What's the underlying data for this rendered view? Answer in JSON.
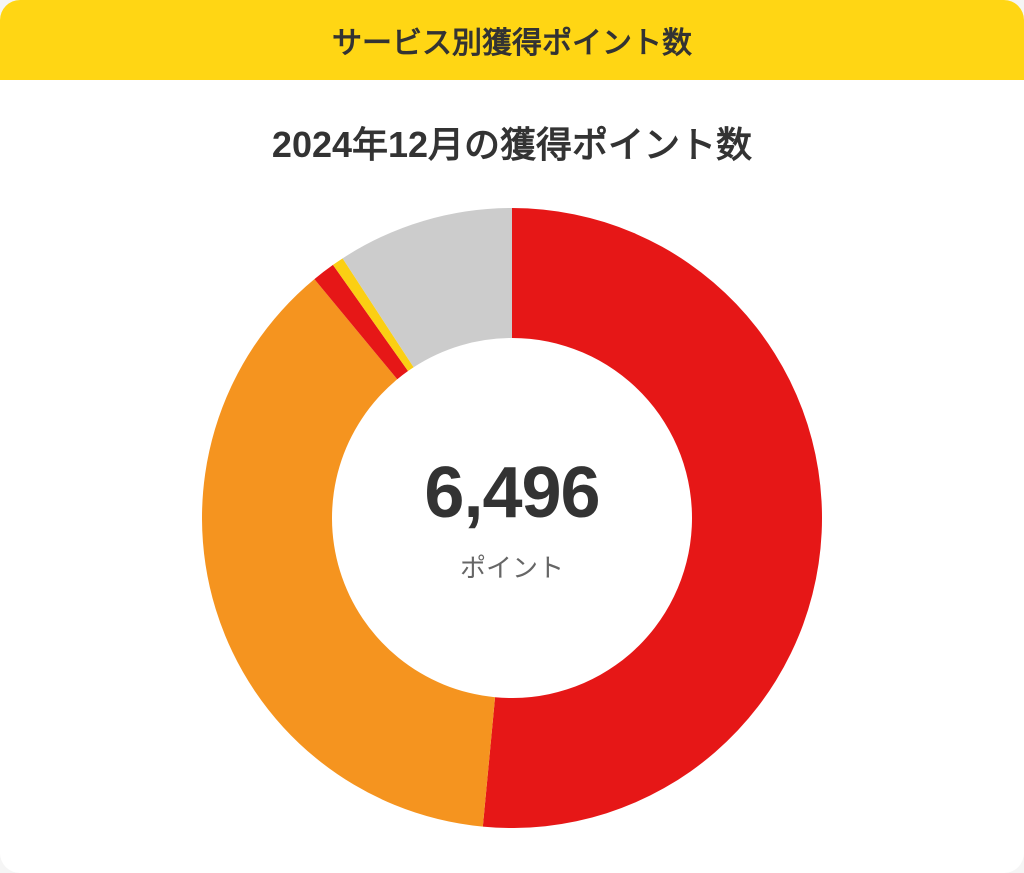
{
  "header": {
    "title": "サービス別獲得ポイント数",
    "background_color": "#ffd614",
    "text_color": "#333333"
  },
  "subtitle": {
    "text": "2024年12月の獲得ポイント数",
    "text_color": "#333333"
  },
  "chart": {
    "type": "donut",
    "size": 660,
    "outer_radius": 310,
    "inner_radius": 180,
    "background_color": "#ffffff",
    "start_angle_deg": 0,
    "slices": [
      {
        "value": 51.5,
        "color": "#e61717"
      },
      {
        "value": 37.5,
        "color": "#f5941f"
      },
      {
        "value": 1.2,
        "color": "#e61717"
      },
      {
        "value": 0.6,
        "color": "#fbcf13"
      },
      {
        "value": 9.2,
        "color": "#cccccc"
      }
    ],
    "center": {
      "value": "6,496",
      "value_color": "#333333",
      "unit": "ポイント",
      "unit_color": "#666666"
    }
  }
}
